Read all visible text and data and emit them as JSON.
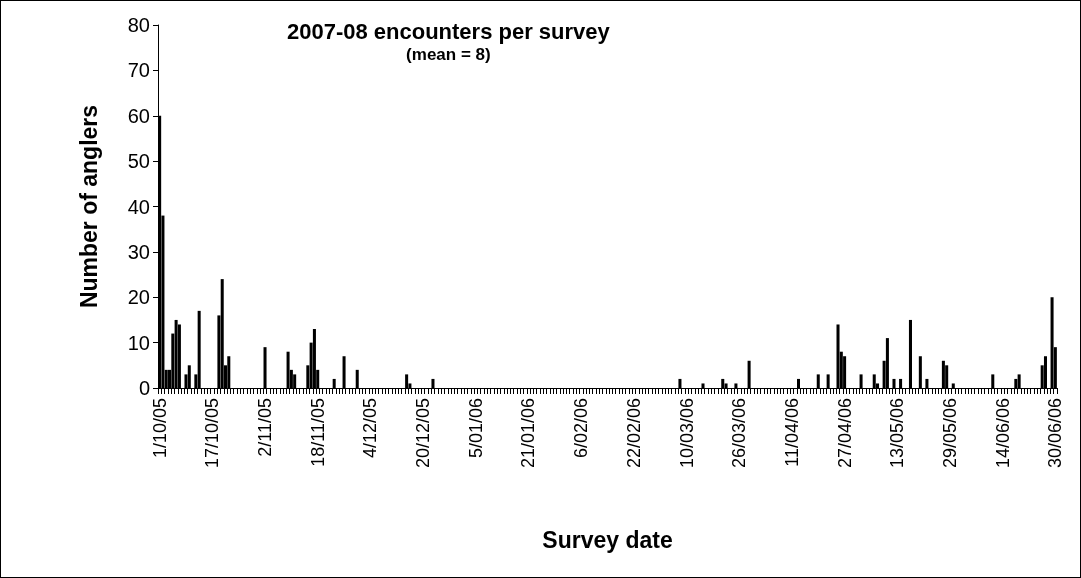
{
  "chart_data": {
    "type": "bar",
    "title": "2007-08 encounters per survey",
    "subtitle": "(mean = 8)",
    "xlabel": "Survey date",
    "ylabel": "Number of anglers",
    "color": "#000000",
    "ylim": [
      0,
      80
    ],
    "yticks": [
      0,
      10,
      20,
      30,
      40,
      50,
      60,
      70,
      80
    ],
    "grid": false,
    "categories": [
      "1/10/05",
      null,
      null,
      null,
      null,
      null,
      null,
      null,
      null,
      null,
      null,
      null,
      null,
      null,
      null,
      null,
      "17/10/05",
      null,
      null,
      null,
      null,
      null,
      null,
      null,
      null,
      null,
      null,
      null,
      null,
      null,
      null,
      null,
      "2/11/05",
      null,
      null,
      null,
      null,
      null,
      null,
      null,
      null,
      null,
      null,
      null,
      null,
      null,
      null,
      null,
      "18/11/05",
      null,
      null,
      null,
      null,
      null,
      null,
      null,
      null,
      null,
      null,
      null,
      null,
      null,
      null,
      null,
      "4/12/05",
      null,
      null,
      null,
      null,
      null,
      null,
      null,
      null,
      null,
      null,
      null,
      null,
      null,
      null,
      null,
      "20/12/05",
      null,
      null,
      null,
      null,
      null,
      null,
      null,
      null,
      null,
      null,
      null,
      null,
      null,
      null,
      null,
      "5/01/06",
      null,
      null,
      null,
      null,
      null,
      null,
      null,
      null,
      null,
      null,
      null,
      null,
      null,
      null,
      null,
      "21/01/06",
      null,
      null,
      null,
      null,
      null,
      null,
      null,
      null,
      null,
      null,
      null,
      null,
      null,
      null,
      null,
      "6/02/06",
      null,
      null,
      null,
      null,
      null,
      null,
      null,
      null,
      null,
      null,
      null,
      null,
      null,
      null,
      null,
      "22/02/06",
      null,
      null,
      null,
      null,
      null,
      null,
      null,
      null,
      null,
      null,
      null,
      null,
      null,
      null,
      null,
      "10/03/06",
      null,
      null,
      null,
      null,
      null,
      null,
      null,
      null,
      null,
      null,
      null,
      null,
      null,
      null,
      null,
      "26/03/06",
      null,
      null,
      null,
      null,
      null,
      null,
      null,
      null,
      null,
      null,
      null,
      null,
      null,
      null,
      null,
      "11/04/06",
      null,
      null,
      null,
      null,
      null,
      null,
      null,
      null,
      null,
      null,
      null,
      null,
      null,
      null,
      null,
      "27/04/06",
      null,
      null,
      null,
      null,
      null,
      null,
      null,
      null,
      null,
      null,
      null,
      null,
      null,
      null,
      null,
      "13/05/06",
      null,
      null,
      null,
      null,
      null,
      null,
      null,
      null,
      null,
      null,
      null,
      null,
      null,
      null,
      null,
      "29/05/06",
      null,
      null,
      null,
      null,
      null,
      null,
      null,
      null,
      null,
      null,
      null,
      null,
      null,
      null,
      null,
      "14/06/06",
      null,
      null,
      null,
      null,
      null,
      null,
      null,
      null,
      null,
      null,
      null,
      null,
      null,
      null,
      null,
      "30/06/06"
    ],
    "values": [
      60,
      38,
      4,
      4,
      12,
      15,
      14,
      null,
      3,
      5,
      null,
      3,
      17,
      null,
      null,
      null,
      null,
      null,
      16,
      24,
      5,
      7,
      null,
      null,
      null,
      null,
      null,
      null,
      null,
      null,
      null,
      null,
      9,
      null,
      null,
      null,
      null,
      null,
      null,
      8,
      4,
      3,
      null,
      null,
      null,
      5,
      10,
      13,
      4,
      null,
      null,
      null,
      null,
      2,
      null,
      null,
      7,
      null,
      null,
      null,
      4,
      null,
      null,
      null,
      null,
      null,
      null,
      null,
      null,
      null,
      null,
      null,
      null,
      null,
      null,
      3,
      1,
      null,
      null,
      null,
      null,
      null,
      null,
      2,
      null,
      null,
      null,
      null,
      null,
      null,
      null,
      null,
      null,
      null,
      null,
      null,
      null,
      null,
      null,
      null,
      null,
      null,
      null,
      null,
      null,
      null,
      null,
      null,
      null,
      null,
      null,
      null,
      null,
      null,
      null,
      null,
      null,
      null,
      null,
      null,
      null,
      null,
      null,
      null,
      null,
      null,
      null,
      null,
      null,
      null,
      null,
      null,
      null,
      null,
      null,
      null,
      null,
      null,
      null,
      null,
      null,
      null,
      null,
      null,
      null,
      null,
      null,
      null,
      null,
      null,
      null,
      null,
      null,
      null,
      null,
      null,
      null,
      null,
      2,
      null,
      null,
      null,
      null,
      null,
      null,
      1,
      null,
      null,
      null,
      null,
      null,
      2,
      1,
      null,
      null,
      1,
      null,
      null,
      null,
      6,
      null,
      null,
      null,
      null,
      null,
      null,
      null,
      null,
      null,
      null,
      null,
      null,
      null,
      null,
      2,
      null,
      null,
      null,
      null,
      null,
      3,
      null,
      null,
      3,
      null,
      null,
      14,
      8,
      7,
      null,
      null,
      null,
      null,
      3,
      null,
      null,
      null,
      3,
      1,
      null,
      6,
      11,
      null,
      2,
      null,
      2,
      null,
      null,
      15,
      null,
      null,
      7,
      null,
      2,
      null,
      null,
      null,
      null,
      6,
      5,
      null,
      1,
      null,
      null,
      null,
      null,
      null,
      null,
      null,
      null,
      null,
      null,
      null,
      3,
      null,
      null,
      null,
      null,
      null,
      null,
      2,
      3,
      null,
      null,
      null,
      null,
      null,
      null,
      5,
      7,
      null,
      20,
      9
    ]
  }
}
